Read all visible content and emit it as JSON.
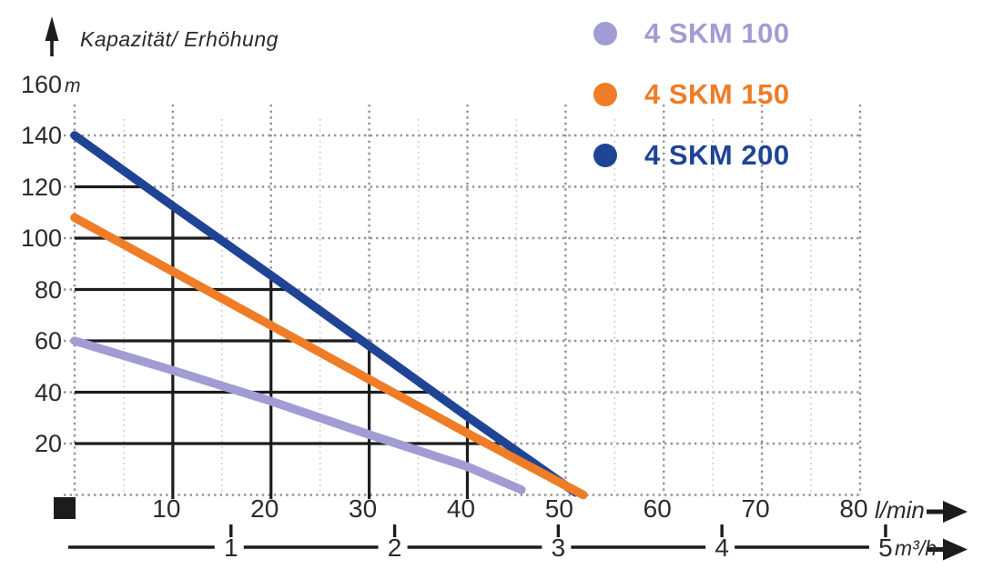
{
  "header": {
    "title": "Kapazität/ Erhöhung"
  },
  "icons": {
    "capacity_axis_arrow": "up-arrow-icon",
    "flow_axis_arrow": "right-arrow-icon",
    "flow_axis_secondary_arrow": "right-arrow-icon",
    "origin_marker": "black-square-marker"
  },
  "legend": {
    "position": "top-right",
    "items": [
      {
        "label": "4 SKM 100",
        "color": "#a19cd4"
      },
      {
        "label": "4 SKM 150",
        "color": "#ef7c26"
      },
      {
        "label": "4 SKM 200",
        "color": "#1f4496"
      }
    ]
  },
  "chart_data": {
    "type": "line",
    "title": "Kapazität/ Erhöhung",
    "x_axis": {
      "unit": "l/min",
      "ticks": [
        10,
        20,
        30,
        40,
        50,
        60,
        70,
        80
      ],
      "range": [
        0,
        80
      ],
      "minor_tick_step": 5
    },
    "x_axis_secondary": {
      "unit": "m³/h",
      "ticks": [
        1,
        2,
        3,
        4,
        5
      ],
      "liters_per_unit": 16.6667
    },
    "y_axis": {
      "unit": "m",
      "ticks": [
        160,
        140,
        120,
        100,
        80,
        60,
        40,
        20
      ],
      "range": [
        0,
        160
      ],
      "gridline_step": 20
    },
    "series": [
      {
        "name": "4 SKM 100",
        "color": "#a19cd4",
        "points": [
          [
            0,
            60
          ],
          [
            10,
            48.5
          ],
          [
            20,
            36.5
          ],
          [
            30,
            23.5
          ],
          [
            40,
            11
          ],
          [
            45.5,
            2
          ]
        ]
      },
      {
        "name": "4 SKM 150",
        "color": "#ef7c26",
        "points": [
          [
            0,
            108
          ],
          [
            10,
            87
          ],
          [
            20,
            66
          ],
          [
            30,
            45
          ],
          [
            40,
            24
          ],
          [
            51.8,
            0
          ]
        ]
      },
      {
        "name": "4 SKM 200",
        "color": "#1f4496",
        "points": [
          [
            0,
            140
          ],
          [
            10,
            112.5
          ],
          [
            20,
            85.5
          ],
          [
            30,
            58
          ],
          [
            40,
            30.5
          ],
          [
            51,
            1
          ]
        ]
      }
    ],
    "grid": {
      "dotted_grid": true,
      "solid_grid_bounded_by_series": "4 SKM 200"
    },
    "legend_position": "top-right"
  }
}
